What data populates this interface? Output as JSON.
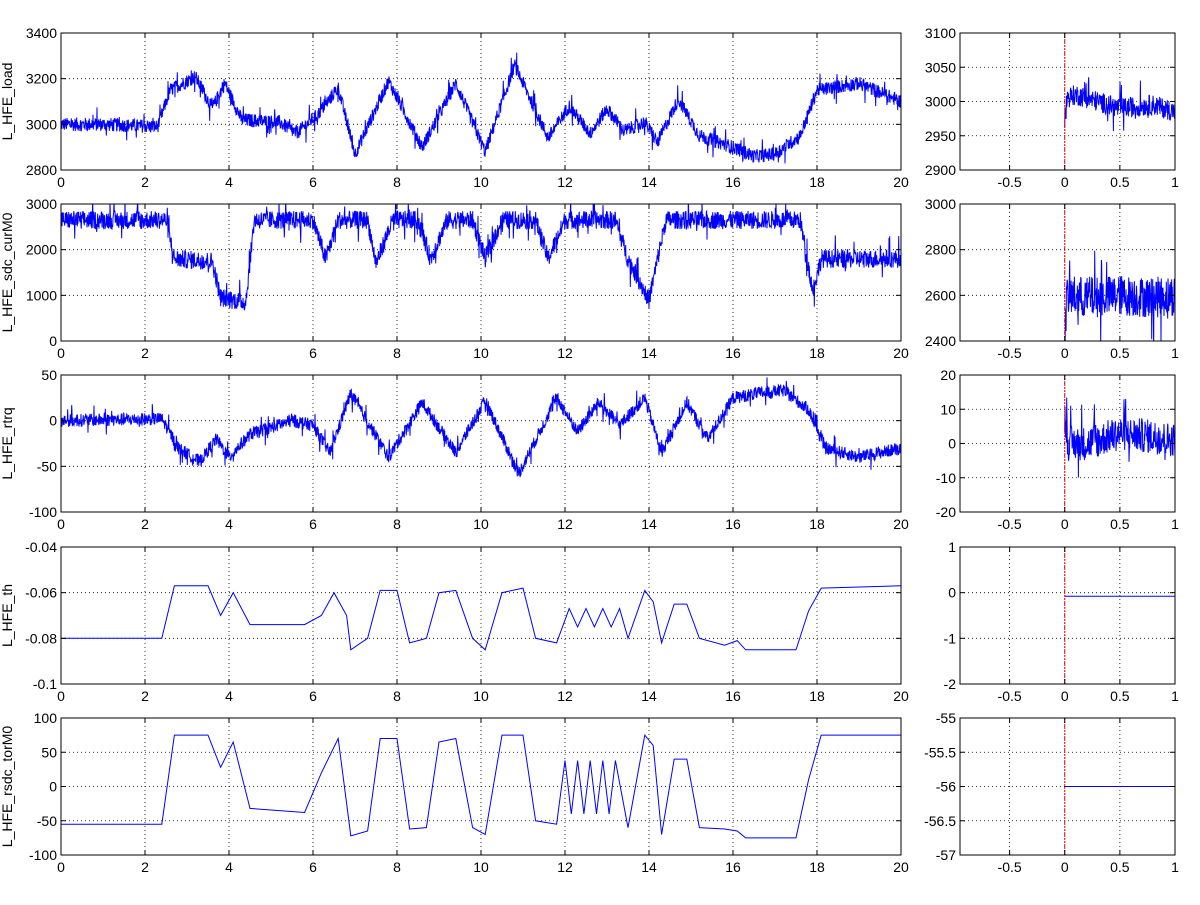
{
  "figure": {
    "background": "#ffffff",
    "axis_color": "#000000",
    "grid_color": "#000000",
    "signal_color": "#0000ff",
    "marker_color": "#ff0000"
  },
  "chart_data": [
    {
      "type": "line",
      "panel": "left",
      "row": 0,
      "ylabel": "L_HFE_load",
      "xlim": [
        0,
        20
      ],
      "ylim": [
        2800,
        3400
      ],
      "xticks": [
        0,
        2,
        4,
        6,
        8,
        10,
        12,
        14,
        16,
        18,
        20
      ],
      "yticks": [
        2800,
        3000,
        3200,
        3400
      ],
      "grid": true,
      "series": [
        {
          "noise": 30,
          "points": [
            [
              0,
              3000
            ],
            [
              1,
              3000
            ],
            [
              2.3,
              2990
            ],
            [
              2.6,
              3150
            ],
            [
              3.2,
              3210
            ],
            [
              3.6,
              3070
            ],
            [
              3.9,
              3180
            ],
            [
              4.3,
              3020
            ],
            [
              5.2,
              3010
            ],
            [
              5.6,
              2960
            ],
            [
              6.1,
              3040
            ],
            [
              6.6,
              3160
            ],
            [
              7.0,
              2870
            ],
            [
              7.8,
              3190
            ],
            [
              8.6,
              2900
            ],
            [
              9.4,
              3180
            ],
            [
              10.1,
              2880
            ],
            [
              10.8,
              3260
            ],
            [
              11.6,
              2940
            ],
            [
              12.1,
              3080
            ],
            [
              12.6,
              2960
            ],
            [
              13.0,
              3070
            ],
            [
              13.4,
              2970
            ],
            [
              13.9,
              3010
            ],
            [
              14.2,
              2920
            ],
            [
              14.7,
              3110
            ],
            [
              15.2,
              2950
            ],
            [
              16.0,
              2900
            ],
            [
              16.5,
              2860
            ],
            [
              17.0,
              2870
            ],
            [
              17.6,
              2950
            ],
            [
              18.0,
              3150
            ],
            [
              19.0,
              3180
            ],
            [
              20,
              3100
            ]
          ]
        }
      ]
    },
    {
      "type": "line",
      "panel": "right",
      "row": 0,
      "ylabel": "",
      "xlim": [
        -0.95,
        1
      ],
      "ylim": [
        2900,
        3100
      ],
      "xticks": [
        -0.5,
        0,
        0.5,
        1
      ],
      "yticks": [
        2900,
        2950,
        3000,
        3050,
        3100
      ],
      "grid": true,
      "marker_x": 0,
      "series": [
        {
          "noise": 15,
          "points": [
            [
              0,
              2975
            ],
            [
              0.02,
              3005
            ],
            [
              0.1,
              3010
            ],
            [
              0.3,
              3000
            ],
            [
              0.5,
              2990
            ],
            [
              0.8,
              2995
            ],
            [
              1,
              2985
            ]
          ]
        }
      ]
    },
    {
      "type": "line",
      "panel": "left",
      "row": 1,
      "ylabel": "L_HFE_sdc_curM0",
      "xlim": [
        0,
        20
      ],
      "ylim": [
        0,
        3000
      ],
      "xticks": [
        0,
        2,
        4,
        6,
        8,
        10,
        12,
        14,
        16,
        18,
        20
      ],
      "yticks": [
        0,
        1000,
        2000,
        3000
      ],
      "grid": true,
      "series": [
        {
          "noise": 200,
          "points": [
            [
              0,
              2650
            ],
            [
              2.5,
              2650
            ],
            [
              2.7,
              1800
            ],
            [
              3.6,
              1750
            ],
            [
              3.8,
              950
            ],
            [
              4.4,
              850
            ],
            [
              4.6,
              2650
            ],
            [
              6.0,
              2650
            ],
            [
              6.3,
              1800
            ],
            [
              6.6,
              2650
            ],
            [
              7.3,
              2650
            ],
            [
              7.5,
              1700
            ],
            [
              7.9,
              2650
            ],
            [
              8.5,
              2650
            ],
            [
              8.8,
              1800
            ],
            [
              9.2,
              2650
            ],
            [
              9.8,
              2650
            ],
            [
              10.1,
              1800
            ],
            [
              10.5,
              2650
            ],
            [
              11.3,
              2650
            ],
            [
              11.6,
              1800
            ],
            [
              12.0,
              2650
            ],
            [
              13.2,
              2650
            ],
            [
              13.5,
              1800
            ],
            [
              14.0,
              900
            ],
            [
              14.4,
              2650
            ],
            [
              17.6,
              2650
            ],
            [
              17.9,
              1100
            ],
            [
              18.1,
              1800
            ],
            [
              20,
              1800
            ]
          ]
        }
      ]
    },
    {
      "type": "line",
      "panel": "right",
      "row": 1,
      "ylabel": "",
      "xlim": [
        -0.95,
        1
      ],
      "ylim": [
        2400,
        3000
      ],
      "xticks": [
        -0.5,
        0,
        0.5,
        1
      ],
      "yticks": [
        2400,
        2600,
        2800,
        3000
      ],
      "grid": true,
      "marker_x": 0,
      "series": [
        {
          "noise": 90,
          "points": [
            [
              0,
              2420
            ],
            [
              0.02,
              2600
            ],
            [
              0.2,
              2590
            ],
            [
              0.5,
              2600
            ],
            [
              0.8,
              2590
            ],
            [
              1,
              2600
            ]
          ]
        }
      ]
    },
    {
      "type": "line",
      "panel": "left",
      "row": 2,
      "ylabel": "L_HFE_rtrq",
      "xlim": [
        0,
        20
      ],
      "ylim": [
        -100,
        50
      ],
      "xticks": [
        0,
        2,
        4,
        6,
        8,
        10,
        12,
        14,
        16,
        18,
        20
      ],
      "yticks": [
        -100,
        -50,
        0,
        50
      ],
      "grid": true,
      "series": [
        {
          "noise": 7,
          "points": [
            [
              0,
              0
            ],
            [
              2.4,
              2
            ],
            [
              2.8,
              -30
            ],
            [
              3.3,
              -45
            ],
            [
              3.7,
              -20
            ],
            [
              4.0,
              -40
            ],
            [
              4.5,
              -15
            ],
            [
              5.5,
              0
            ],
            [
              6.0,
              -5
            ],
            [
              6.4,
              -35
            ],
            [
              6.9,
              30
            ],
            [
              7.8,
              -40
            ],
            [
              8.6,
              20
            ],
            [
              9.4,
              -35
            ],
            [
              10.1,
              22
            ],
            [
              10.9,
              -58
            ],
            [
              11.8,
              25
            ],
            [
              12.3,
              -12
            ],
            [
              12.8,
              20
            ],
            [
              13.3,
              -5
            ],
            [
              13.9,
              25
            ],
            [
              14.3,
              -35
            ],
            [
              14.9,
              20
            ],
            [
              15.4,
              -20
            ],
            [
              16.0,
              25
            ],
            [
              16.6,
              30
            ],
            [
              17.2,
              33
            ],
            [
              17.8,
              12
            ],
            [
              18.2,
              -30
            ],
            [
              19.0,
              -40
            ],
            [
              20,
              -30
            ]
          ]
        }
      ]
    },
    {
      "type": "line",
      "panel": "right",
      "row": 2,
      "ylabel": "",
      "xlim": [
        -0.95,
        1
      ],
      "ylim": [
        -20,
        20
      ],
      "xticks": [
        -0.5,
        0,
        0.5,
        1
      ],
      "yticks": [
        -20,
        -10,
        0,
        10,
        20
      ],
      "grid": true,
      "marker_x": 0,
      "series": [
        {
          "noise": 5,
          "points": [
            [
              0,
              8
            ],
            [
              0.03,
              0
            ],
            [
              0.2,
              0
            ],
            [
              0.5,
              3
            ],
            [
              0.8,
              2
            ],
            [
              1,
              1
            ]
          ]
        }
      ]
    },
    {
      "type": "line",
      "panel": "left",
      "row": 3,
      "ylabel": "L_HFE_th",
      "xlim": [
        0,
        20
      ],
      "ylim": [
        -0.1,
        -0.04
      ],
      "xticks": [
        0,
        2,
        4,
        6,
        8,
        10,
        12,
        14,
        16,
        18,
        20
      ],
      "yticks": [
        -0.1,
        -0.08,
        -0.06,
        -0.04
      ],
      "grid": true,
      "series": [
        {
          "noise": 0,
          "points": [
            [
              0,
              -0.08
            ],
            [
              2.4,
              -0.08
            ],
            [
              2.7,
              -0.057
            ],
            [
              3.5,
              -0.057
            ],
            [
              3.8,
              -0.07
            ],
            [
              4.1,
              -0.06
            ],
            [
              4.5,
              -0.074
            ],
            [
              5.8,
              -0.074
            ],
            [
              6.2,
              -0.07
            ],
            [
              6.5,
              -0.06
            ],
            [
              6.8,
              -0.07
            ],
            [
              6.9,
              -0.085
            ],
            [
              7.3,
              -0.08
            ],
            [
              7.6,
              -0.059
            ],
            [
              8.0,
              -0.059
            ],
            [
              8.3,
              -0.082
            ],
            [
              8.7,
              -0.08
            ],
            [
              9.0,
              -0.06
            ],
            [
              9.4,
              -0.059
            ],
            [
              9.8,
              -0.08
            ],
            [
              10.1,
              -0.085
            ],
            [
              10.5,
              -0.06
            ],
            [
              11.0,
              -0.058
            ],
            [
              11.3,
              -0.08
            ],
            [
              11.8,
              -0.082
            ],
            [
              12.1,
              -0.067
            ],
            [
              12.3,
              -0.075
            ],
            [
              12.5,
              -0.067
            ],
            [
              12.7,
              -0.075
            ],
            [
              12.9,
              -0.067
            ],
            [
              13.1,
              -0.075
            ],
            [
              13.3,
              -0.067
            ],
            [
              13.5,
              -0.08
            ],
            [
              13.9,
              -0.059
            ],
            [
              14.1,
              -0.064
            ],
            [
              14.3,
              -0.082
            ],
            [
              14.6,
              -0.065
            ],
            [
              14.9,
              -0.065
            ],
            [
              15.2,
              -0.08
            ],
            [
              15.8,
              -0.083
            ],
            [
              16.1,
              -0.081
            ],
            [
              16.3,
              -0.085
            ],
            [
              17.5,
              -0.085
            ],
            [
              17.8,
              -0.068
            ],
            [
              18.1,
              -0.058
            ],
            [
              20,
              -0.057
            ]
          ]
        }
      ]
    },
    {
      "type": "line",
      "panel": "right",
      "row": 3,
      "ylabel": "",
      "xlim": [
        -0.95,
        1
      ],
      "ylim": [
        -2,
        1
      ],
      "xticks": [
        -0.5,
        0,
        0.5,
        1
      ],
      "yticks": [
        -2,
        -1,
        0,
        1
      ],
      "grid": true,
      "marker_x": 0,
      "series": [
        {
          "noise": 0,
          "points": [
            [
              0,
              -0.08
            ],
            [
              1,
              -0.08
            ]
          ]
        }
      ]
    },
    {
      "type": "line",
      "panel": "left",
      "row": 4,
      "ylabel": "L_HFE_rsdc_torM0",
      "xlim": [
        0,
        20
      ],
      "ylim": [
        -100,
        100
      ],
      "xticks": [
        0,
        2,
        4,
        6,
        8,
        10,
        12,
        14,
        16,
        18,
        20
      ],
      "yticks": [
        -100,
        -50,
        0,
        50,
        100
      ],
      "grid": true,
      "series": [
        {
          "noise": 0,
          "points": [
            [
              0,
              -55
            ],
            [
              2.4,
              -55
            ],
            [
              2.7,
              75
            ],
            [
              3.5,
              75
            ],
            [
              3.8,
              28
            ],
            [
              4.1,
              65
            ],
            [
              4.5,
              -32
            ],
            [
              5.8,
              -38
            ],
            [
              6.2,
              20
            ],
            [
              6.6,
              70
            ],
            [
              6.9,
              -72
            ],
            [
              7.3,
              -65
            ],
            [
              7.6,
              70
            ],
            [
              8.0,
              70
            ],
            [
              8.3,
              -62
            ],
            [
              8.7,
              -60
            ],
            [
              9.0,
              65
            ],
            [
              9.4,
              70
            ],
            [
              9.8,
              -60
            ],
            [
              10.1,
              -70
            ],
            [
              10.5,
              75
            ],
            [
              11.0,
              75
            ],
            [
              11.3,
              -50
            ],
            [
              11.8,
              -55
            ],
            [
              12.0,
              38
            ],
            [
              12.15,
              -40
            ],
            [
              12.3,
              38
            ],
            [
              12.45,
              -40
            ],
            [
              12.6,
              38
            ],
            [
              12.75,
              -40
            ],
            [
              12.9,
              38
            ],
            [
              13.05,
              -40
            ],
            [
              13.2,
              38
            ],
            [
              13.5,
              -60
            ],
            [
              13.9,
              75
            ],
            [
              14.1,
              60
            ],
            [
              14.3,
              -70
            ],
            [
              14.6,
              40
            ],
            [
              14.9,
              40
            ],
            [
              15.2,
              -60
            ],
            [
              15.8,
              -62
            ],
            [
              16.1,
              -65
            ],
            [
              16.3,
              -75
            ],
            [
              17.5,
              -75
            ],
            [
              17.8,
              10
            ],
            [
              18.1,
              75
            ],
            [
              20,
              75
            ]
          ]
        }
      ]
    },
    {
      "type": "line",
      "panel": "right",
      "row": 4,
      "ylabel": "",
      "xlim": [
        -0.95,
        1
      ],
      "ylim": [
        -57,
        -55
      ],
      "xticks": [
        -0.5,
        0,
        0.5,
        1
      ],
      "yticks": [
        -57,
        -56.5,
        -56,
        -55.5,
        -55
      ],
      "grid": true,
      "marker_x": 0,
      "series": [
        {
          "noise": 0,
          "points": [
            [
              0,
              -56
            ],
            [
              1,
              -56
            ]
          ]
        }
      ]
    }
  ]
}
